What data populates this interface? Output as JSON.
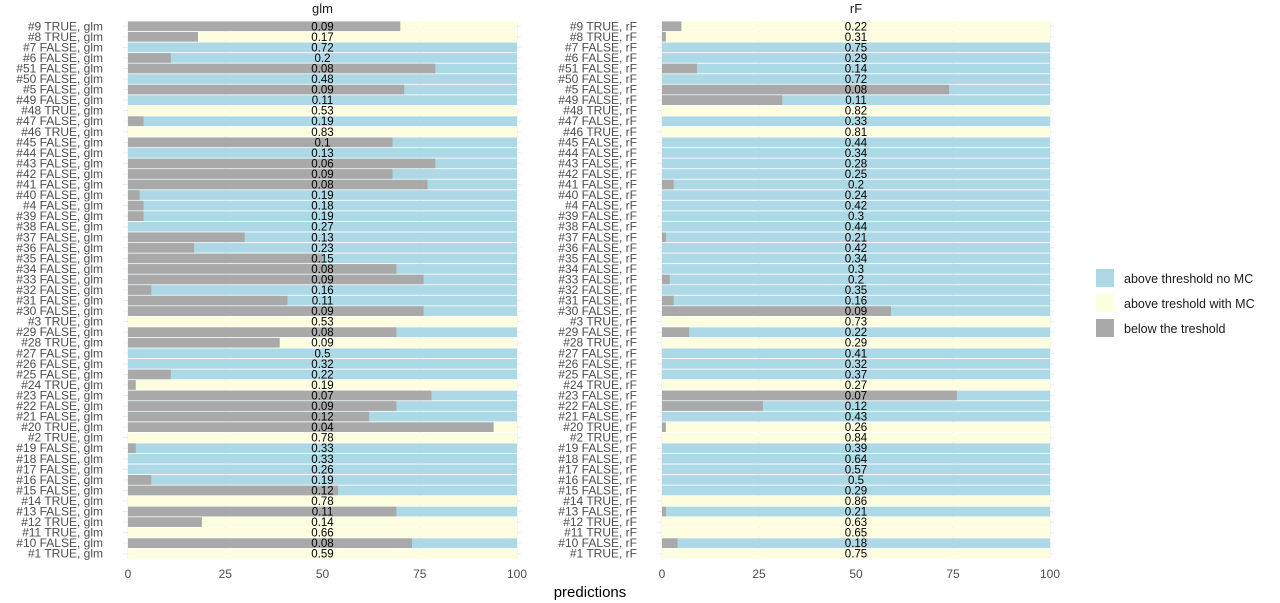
{
  "chart_data": {
    "type": "bar",
    "orientation": "horizontal",
    "stacked": true,
    "xlabel": "predictions",
    "xlim": [
      0,
      100
    ],
    "x_ticks": [
      "0",
      "25",
      "50",
      "75",
      "100"
    ],
    "grid": true,
    "legend_position": "right",
    "legend": [
      {
        "key": "above",
        "label": "above threshold no MC",
        "color": "#add8e6"
      },
      {
        "key": "with_mc",
        "label": "above treshold with MC",
        "color": "#fdfde0"
      },
      {
        "key": "below",
        "label": "below the treshold",
        "color": "#a9a9a9"
      }
    ],
    "panels": [
      {
        "title": "glm",
        "rows": [
          {
            "label": "#9 TRUE, glm",
            "below": 70,
            "fill": "with_mc",
            "value": "0.09"
          },
          {
            "label": "#8 TRUE, glm",
            "below": 18,
            "fill": "with_mc",
            "value": "0.17"
          },
          {
            "label": "#7 FALSE, glm",
            "below": 0,
            "fill": "above",
            "value": "0.72"
          },
          {
            "label": "#6 FALSE, glm",
            "below": 11,
            "fill": "above",
            "value": "0.2"
          },
          {
            "label": "#51 FALSE, glm",
            "below": 79,
            "fill": "above",
            "value": "0.08"
          },
          {
            "label": "#50 FALSE, glm",
            "below": 0,
            "fill": "above",
            "value": "0.48"
          },
          {
            "label": "#5 FALSE, glm",
            "below": 71,
            "fill": "above",
            "value": "0.09"
          },
          {
            "label": "#49 FALSE, glm",
            "below": 0,
            "fill": "above",
            "value": "0.11"
          },
          {
            "label": "#48 TRUE, glm",
            "below": 0,
            "fill": "with_mc",
            "value": "0.53"
          },
          {
            "label": "#47 FALSE, glm",
            "below": 4,
            "fill": "above",
            "value": "0.19"
          },
          {
            "label": "#46 TRUE, glm",
            "below": 0,
            "fill": "with_mc",
            "value": "0.83"
          },
          {
            "label": "#45 FALSE, glm",
            "below": 68,
            "fill": "above",
            "value": "0.1"
          },
          {
            "label": "#44 FALSE, glm",
            "below": 0,
            "fill": "above",
            "value": "0.13"
          },
          {
            "label": "#43 FALSE, glm",
            "below": 79,
            "fill": "above",
            "value": "0.06"
          },
          {
            "label": "#42 FALSE, glm",
            "below": 68,
            "fill": "above",
            "value": "0.09"
          },
          {
            "label": "#41 FALSE, glm",
            "below": 77,
            "fill": "above",
            "value": "0.08"
          },
          {
            "label": "#40 FALSE, glm",
            "below": 3,
            "fill": "above",
            "value": "0.19"
          },
          {
            "label": "#4 FALSE, glm",
            "below": 4,
            "fill": "above",
            "value": "0.18"
          },
          {
            "label": "#39 FALSE, glm",
            "below": 4,
            "fill": "above",
            "value": "0.19"
          },
          {
            "label": "#38 FALSE, glm",
            "below": 0,
            "fill": "above",
            "value": "0.27"
          },
          {
            "label": "#37 FALSE, glm",
            "below": 30,
            "fill": "above",
            "value": "0.13"
          },
          {
            "label": "#36 FALSE, glm",
            "below": 17,
            "fill": "above",
            "value": "0.23"
          },
          {
            "label": "#35 FALSE, glm",
            "below": 50,
            "fill": "above",
            "value": "0.15"
          },
          {
            "label": "#34 FALSE, glm",
            "below": 69,
            "fill": "above",
            "value": "0.08"
          },
          {
            "label": "#33 FALSE, glm",
            "below": 76,
            "fill": "above",
            "value": "0.09"
          },
          {
            "label": "#32 FALSE, glm",
            "below": 6,
            "fill": "above",
            "value": "0.16"
          },
          {
            "label": "#31 FALSE, glm",
            "below": 41,
            "fill": "above",
            "value": "0.11"
          },
          {
            "label": "#30 FALSE, glm",
            "below": 76,
            "fill": "above",
            "value": "0.09"
          },
          {
            "label": "#3 TRUE, glm",
            "below": 0,
            "fill": "with_mc",
            "value": "0.53"
          },
          {
            "label": "#29 FALSE, glm",
            "below": 69,
            "fill": "above",
            "value": "0.08"
          },
          {
            "label": "#28 TRUE, glm",
            "below": 39,
            "fill": "with_mc",
            "value": "0.09"
          },
          {
            "label": "#27 FALSE, glm",
            "below": 0,
            "fill": "above",
            "value": "0.5"
          },
          {
            "label": "#26 FALSE, glm",
            "below": 0,
            "fill": "above",
            "value": "0.32"
          },
          {
            "label": "#25 FALSE, glm",
            "below": 11,
            "fill": "above",
            "value": "0.22"
          },
          {
            "label": "#24 TRUE, glm",
            "below": 2,
            "fill": "with_mc",
            "value": "0.19"
          },
          {
            "label": "#23 FALSE, glm",
            "below": 78,
            "fill": "above",
            "value": "0.07"
          },
          {
            "label": "#22 FALSE, glm",
            "below": 69,
            "fill": "above",
            "value": "0.09"
          },
          {
            "label": "#21 FALSE, glm",
            "below": 62,
            "fill": "above",
            "value": "0.12"
          },
          {
            "label": "#20 TRUE, glm",
            "below": 94,
            "fill": "with_mc",
            "value": "0.04"
          },
          {
            "label": "#2 TRUE, glm",
            "below": 0,
            "fill": "with_mc",
            "value": "0.78"
          },
          {
            "label": "#19 FALSE, glm",
            "below": 2,
            "fill": "above",
            "value": "0.33"
          },
          {
            "label": "#18 FALSE, glm",
            "below": 0,
            "fill": "above",
            "value": "0.33"
          },
          {
            "label": "#17 FALSE, glm",
            "below": 0,
            "fill": "above",
            "value": "0.26"
          },
          {
            "label": "#16 FALSE, glm",
            "below": 6,
            "fill": "above",
            "value": "0.19"
          },
          {
            "label": "#15 FALSE, glm",
            "below": 54,
            "fill": "above",
            "value": "0.12"
          },
          {
            "label": "#14 TRUE, glm",
            "below": 0,
            "fill": "with_mc",
            "value": "0.78"
          },
          {
            "label": "#13 FALSE, glm",
            "below": 69,
            "fill": "above",
            "value": "0.11"
          },
          {
            "label": "#12 TRUE, glm",
            "below": 19,
            "fill": "with_mc",
            "value": "0.14"
          },
          {
            "label": "#11 TRUE, glm",
            "below": 0,
            "fill": "with_mc",
            "value": "0.66"
          },
          {
            "label": "#10 FALSE, glm",
            "below": 73,
            "fill": "above",
            "value": "0.08"
          },
          {
            "label": "#1 TRUE, glm",
            "below": 0,
            "fill": "with_mc",
            "value": "0.59"
          }
        ]
      },
      {
        "title": "rF",
        "rows": [
          {
            "label": "#9 TRUE, rF",
            "below": 5,
            "fill": "with_mc",
            "value": "0.22"
          },
          {
            "label": "#8 TRUE, rF",
            "below": 1,
            "fill": "with_mc",
            "value": "0.31"
          },
          {
            "label": "#7 FALSE, rF",
            "below": 0,
            "fill": "above",
            "value": "0.75"
          },
          {
            "label": "#6 FALSE, rF",
            "below": 0,
            "fill": "above",
            "value": "0.29"
          },
          {
            "label": "#51 FALSE, rF",
            "below": 9,
            "fill": "above",
            "value": "0.14"
          },
          {
            "label": "#50 FALSE, rF",
            "below": 0,
            "fill": "above",
            "value": "0.72"
          },
          {
            "label": "#5 FALSE, rF",
            "below": 74,
            "fill": "above",
            "value": "0.08"
          },
          {
            "label": "#49 FALSE, rF",
            "below": 31,
            "fill": "above",
            "value": "0.11"
          },
          {
            "label": "#48 TRUE, rF",
            "below": 0,
            "fill": "with_mc",
            "value": "0.82"
          },
          {
            "label": "#47 FALSE, rF",
            "below": 0,
            "fill": "above",
            "value": "0.33"
          },
          {
            "label": "#46 TRUE, rF",
            "below": 0,
            "fill": "with_mc",
            "value": "0.81"
          },
          {
            "label": "#45 FALSE, rF",
            "below": 0,
            "fill": "above",
            "value": "0.44"
          },
          {
            "label": "#44 FALSE, rF",
            "below": 0,
            "fill": "above",
            "value": "0.34"
          },
          {
            "label": "#43 FALSE, rF",
            "below": 0,
            "fill": "above",
            "value": "0.28"
          },
          {
            "label": "#42 FALSE, rF",
            "below": 0,
            "fill": "above",
            "value": "0.25"
          },
          {
            "label": "#41 FALSE, rF",
            "below": 3,
            "fill": "above",
            "value": "0.2"
          },
          {
            "label": "#40 FALSE, rF",
            "below": 0,
            "fill": "above",
            "value": "0.24"
          },
          {
            "label": "#4 FALSE, rF",
            "below": 0,
            "fill": "above",
            "value": "0.42"
          },
          {
            "label": "#39 FALSE, rF",
            "below": 0,
            "fill": "above",
            "value": "0.3"
          },
          {
            "label": "#38 FALSE, rF",
            "below": 0,
            "fill": "above",
            "value": "0.44"
          },
          {
            "label": "#37 FALSE, rF",
            "below": 1,
            "fill": "above",
            "value": "0.21"
          },
          {
            "label": "#36 FALSE, rF",
            "below": 0,
            "fill": "above",
            "value": "0.42"
          },
          {
            "label": "#35 FALSE, rF",
            "below": 0,
            "fill": "above",
            "value": "0.34"
          },
          {
            "label": "#34 FALSE, rF",
            "below": 0,
            "fill": "above",
            "value": "0.3"
          },
          {
            "label": "#33 FALSE, rF",
            "below": 2,
            "fill": "above",
            "value": "0.2"
          },
          {
            "label": "#32 FALSE, rF",
            "below": 0,
            "fill": "above",
            "value": "0.35"
          },
          {
            "label": "#31 FALSE, rF",
            "below": 3,
            "fill": "above",
            "value": "0.16"
          },
          {
            "label": "#30 FALSE, rF",
            "below": 59,
            "fill": "above",
            "value": "0.09"
          },
          {
            "label": "#3 TRUE, rF",
            "below": 0,
            "fill": "with_mc",
            "value": "0.73"
          },
          {
            "label": "#29 FALSE, rF",
            "below": 7,
            "fill": "above",
            "value": "0.22"
          },
          {
            "label": "#28 TRUE, rF",
            "below": 0,
            "fill": "with_mc",
            "value": "0.29"
          },
          {
            "label": "#27 FALSE, rF",
            "below": 0,
            "fill": "above",
            "value": "0.41"
          },
          {
            "label": "#26 FALSE, rF",
            "below": 0,
            "fill": "above",
            "value": "0.32"
          },
          {
            "label": "#25 FALSE, rF",
            "below": 0,
            "fill": "above",
            "value": "0.37"
          },
          {
            "label": "#24 TRUE, rF",
            "below": 0,
            "fill": "with_mc",
            "value": "0.27"
          },
          {
            "label": "#23 FALSE, rF",
            "below": 76,
            "fill": "above",
            "value": "0.07"
          },
          {
            "label": "#22 FALSE, rF",
            "below": 26,
            "fill": "above",
            "value": "0.12"
          },
          {
            "label": "#21 FALSE, rF",
            "below": 0,
            "fill": "above",
            "value": "0.43"
          },
          {
            "label": "#20 TRUE, rF",
            "below": 1,
            "fill": "with_mc",
            "value": "0.26"
          },
          {
            "label": "#2 TRUE, rF",
            "below": 0,
            "fill": "with_mc",
            "value": "0.84"
          },
          {
            "label": "#19 FALSE, rF",
            "below": 0,
            "fill": "above",
            "value": "0.39"
          },
          {
            "label": "#18 FALSE, rF",
            "below": 0,
            "fill": "above",
            "value": "0.64"
          },
          {
            "label": "#17 FALSE, rF",
            "below": 0,
            "fill": "above",
            "value": "0.57"
          },
          {
            "label": "#16 FALSE, rF",
            "below": 0,
            "fill": "above",
            "value": "0.5"
          },
          {
            "label": "#15 FALSE, rF",
            "below": 0,
            "fill": "above",
            "value": "0.29"
          },
          {
            "label": "#14 TRUE, rF",
            "below": 0,
            "fill": "with_mc",
            "value": "0.86"
          },
          {
            "label": "#13 FALSE, rF",
            "below": 1,
            "fill": "above",
            "value": "0.21"
          },
          {
            "label": "#12 TRUE, rF",
            "below": 0,
            "fill": "with_mc",
            "value": "0.63"
          },
          {
            "label": "#11 TRUE, rF",
            "below": 0,
            "fill": "with_mc",
            "value": "0.65"
          },
          {
            "label": "#10 FALSE, rF",
            "below": 4,
            "fill": "above",
            "value": "0.18"
          },
          {
            "label": "#1 TRUE, rF",
            "below": 0,
            "fill": "with_mc",
            "value": "0.75"
          }
        ]
      }
    ]
  }
}
